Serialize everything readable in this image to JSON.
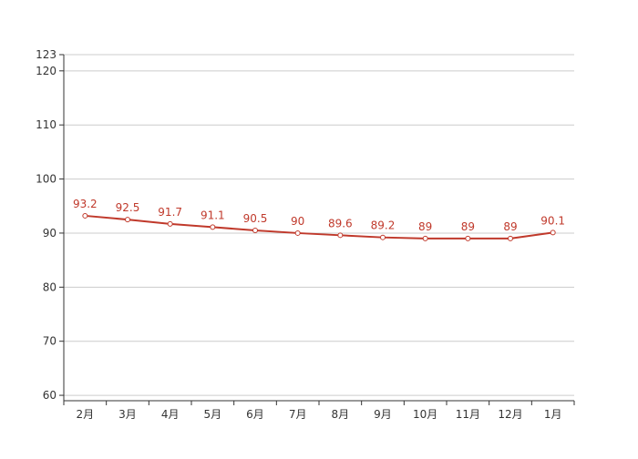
{
  "chart_data": {
    "type": "line",
    "title": "",
    "xlabel": "",
    "ylabel": "",
    "categories": [
      "2月",
      "3月",
      "4月",
      "5月",
      "6月",
      "7月",
      "8月",
      "9月",
      "10月",
      "11月",
      "12月",
      "1月"
    ],
    "series": [
      {
        "values": [
          93.2,
          92.5,
          91.7,
          91.1,
          90.5,
          90,
          89.6,
          89.2,
          89,
          89,
          89,
          90.1
        ],
        "color": "#c0392b"
      }
    ],
    "ylim": [
      59,
      123
    ],
    "yticks": [
      60,
      70,
      80,
      90,
      100,
      110,
      120,
      123
    ],
    "grid": true,
    "data_labels": true,
    "legend": "none"
  },
  "colors": {
    "axis": "#333333",
    "grid": "#cccccc",
    "tick_text": "#333333",
    "line": "#c0392b",
    "label": "#c0392b",
    "marker_fill": "#ffffff"
  }
}
